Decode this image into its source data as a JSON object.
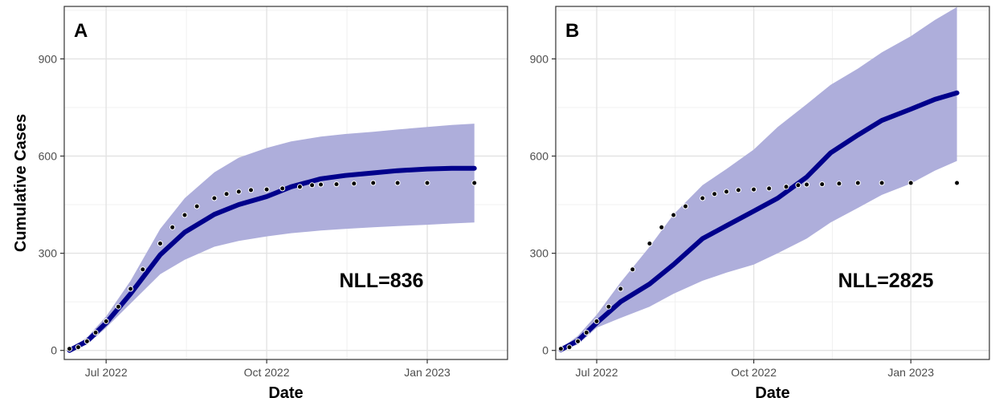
{
  "chart_data": [
    {
      "type": "line",
      "panel_label": "A",
      "annotation": "NLL=836",
      "xlabel": "Date",
      "ylabel": "Cumulative Cases",
      "xlim": [
        "2022-06-07",
        "2023-02-16"
      ],
      "ylim": [
        -28,
        1062
      ],
      "x_ticks": [
        {
          "date": "2022-07-01",
          "label": "Jul 2022"
        },
        {
          "date": "2022-10-01",
          "label": "Oct 2022"
        },
        {
          "date": "2023-01-01",
          "label": "Jan 2023"
        }
      ],
      "y_ticks": [
        0,
        300,
        600,
        900
      ],
      "grid": true,
      "colors": {
        "model": "#00008b",
        "band": "#aeaedb",
        "observed": "#000000"
      },
      "series": [
        {
          "kind": "model-median",
          "x": [
            "2022-06-10",
            "2022-06-20",
            "2022-07-01",
            "2022-07-15",
            "2022-08-01",
            "2022-08-15",
            "2022-09-01",
            "2022-09-15",
            "2022-10-01",
            "2022-10-15",
            "2022-11-01",
            "2022-11-15",
            "2022-12-01",
            "2022-12-15",
            "2023-01-01",
            "2023-01-15",
            "2023-01-28"
          ],
          "values": [
            0,
            28,
            85,
            175,
            295,
            365,
            420,
            450,
            475,
            505,
            530,
            540,
            548,
            555,
            560,
            562,
            562
          ]
        },
        {
          "kind": "model-interval",
          "x": [
            "2022-06-10",
            "2022-06-20",
            "2022-07-01",
            "2022-07-15",
            "2022-08-01",
            "2022-08-15",
            "2022-09-01",
            "2022-09-15",
            "2022-10-01",
            "2022-10-15",
            "2022-11-01",
            "2022-11-15",
            "2022-12-01",
            "2022-12-15",
            "2023-01-01",
            "2023-01-15",
            "2023-01-28"
          ],
          "lower": [
            0,
            18,
            70,
            145,
            235,
            280,
            320,
            338,
            352,
            362,
            370,
            375,
            380,
            384,
            388,
            392,
            395
          ],
          "upper": [
            5,
            40,
            105,
            215,
            375,
            470,
            550,
            595,
            625,
            645,
            660,
            668,
            675,
            682,
            690,
            696,
            700
          ]
        },
        {
          "kind": "observed",
          "x": [
            "2022-06-10",
            "2022-06-15",
            "2022-06-20",
            "2022-06-25",
            "2022-07-01",
            "2022-07-08",
            "2022-07-15",
            "2022-07-22",
            "2022-08-01",
            "2022-08-08",
            "2022-08-15",
            "2022-08-22",
            "2022-09-01",
            "2022-09-08",
            "2022-09-15",
            "2022-09-22",
            "2022-10-01",
            "2022-10-10",
            "2022-10-20",
            "2022-10-27",
            "2022-11-01",
            "2022-11-10",
            "2022-11-20",
            "2022-12-01",
            "2022-12-15",
            "2023-01-01",
            "2023-01-28"
          ],
          "values": [
            5,
            10,
            28,
            55,
            90,
            135,
            190,
            250,
            330,
            380,
            418,
            445,
            470,
            483,
            490,
            495,
            497,
            500,
            505,
            510,
            512,
            513,
            515,
            517,
            517,
            517,
            517
          ]
        }
      ]
    },
    {
      "type": "line",
      "panel_label": "B",
      "annotation": "NLL=2825",
      "xlabel": "Date",
      "ylabel": "",
      "xlim": [
        "2022-06-07",
        "2023-02-16"
      ],
      "ylim": [
        -28,
        1062
      ],
      "x_ticks": [
        {
          "date": "2022-07-01",
          "label": "Jul 2022"
        },
        {
          "date": "2022-10-01",
          "label": "Oct 2022"
        },
        {
          "date": "2023-01-01",
          "label": "Jan 2023"
        }
      ],
      "y_ticks": [
        0,
        300,
        600,
        900
      ],
      "grid": true,
      "colors": {
        "model": "#00008b",
        "band": "#aeaedb",
        "observed": "#000000"
      },
      "series": [
        {
          "kind": "model-median",
          "x": [
            "2022-06-10",
            "2022-06-20",
            "2022-07-01",
            "2022-07-15",
            "2022-08-01",
            "2022-08-15",
            "2022-09-01",
            "2022-09-15",
            "2022-10-01",
            "2022-10-15",
            "2022-11-01",
            "2022-11-15",
            "2022-12-01",
            "2022-12-15",
            "2023-01-01",
            "2023-01-15",
            "2023-01-28"
          ],
          "values": [
            2,
            30,
            85,
            150,
            205,
            265,
            345,
            385,
            430,
            470,
            535,
            610,
            665,
            710,
            745,
            775,
            795
          ]
        },
        {
          "kind": "model-interval",
          "x": [
            "2022-06-10",
            "2022-06-20",
            "2022-07-01",
            "2022-07-15",
            "2022-08-01",
            "2022-08-15",
            "2022-09-01",
            "2022-09-15",
            "2022-10-01",
            "2022-10-15",
            "2022-11-01",
            "2022-11-15",
            "2022-12-01",
            "2022-12-15",
            "2023-01-01",
            "2023-01-15",
            "2023-01-28"
          ],
          "lower": [
            0,
            18,
            70,
            100,
            135,
            175,
            215,
            240,
            265,
            300,
            345,
            395,
            440,
            480,
            515,
            555,
            585
          ],
          "upper": [
            6,
            45,
            110,
            210,
            320,
            420,
            510,
            560,
            620,
            690,
            760,
            820,
            870,
            920,
            970,
            1020,
            1060
          ]
        },
        {
          "kind": "observed",
          "x": [
            "2022-06-10",
            "2022-06-15",
            "2022-06-20",
            "2022-06-25",
            "2022-07-01",
            "2022-07-08",
            "2022-07-15",
            "2022-07-22",
            "2022-08-01",
            "2022-08-08",
            "2022-08-15",
            "2022-08-22",
            "2022-09-01",
            "2022-09-08",
            "2022-09-15",
            "2022-09-22",
            "2022-10-01",
            "2022-10-10",
            "2022-10-20",
            "2022-10-27",
            "2022-11-01",
            "2022-11-10",
            "2022-11-20",
            "2022-12-01",
            "2022-12-15",
            "2023-01-01",
            "2023-01-28"
          ],
          "values": [
            5,
            10,
            28,
            55,
            90,
            135,
            190,
            250,
            330,
            380,
            418,
            445,
            470,
            483,
            490,
            495,
            497,
            500,
            505,
            510,
            512,
            513,
            515,
            517,
            517,
            517,
            517
          ]
        }
      ]
    }
  ]
}
